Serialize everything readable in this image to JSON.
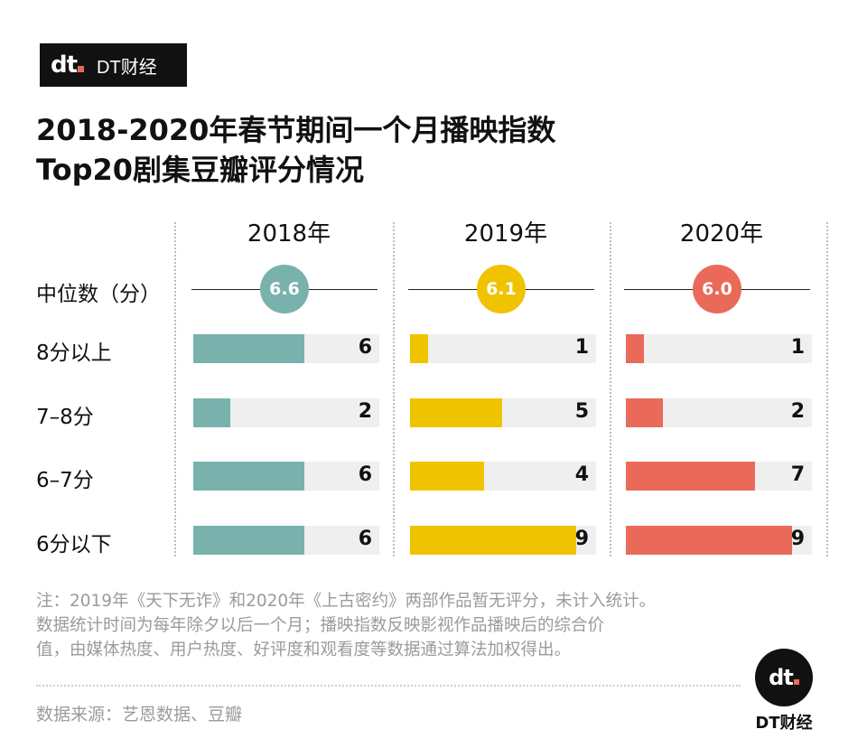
{
  "brand": {
    "mark": "dt",
    "name": "DT财经"
  },
  "title_lines": [
    "2018-2020年春节期间一个月播映指数",
    "Top20剧集豆瓣评分情况"
  ],
  "row_labels": {
    "median": "中位数（分）",
    "r1": "8分以上",
    "r2": "7–8分",
    "r3": "6–7分",
    "r4": "6分以下"
  },
  "note_lines": [
    "注：2019年《天下无诈》和2020年《上古密约》两部作品暂无评分，未计入统计。",
    "数据统计时间为每年除夕以后一个月；播映指数反映影视作品播映后的综合价",
    "值，由媒体热度、用户热度、好评度和观看度等数据通过算法加权得出。"
  ],
  "source": "数据来源：艺恩数据、豆瓣",
  "chart_data": {
    "type": "bar",
    "title": "2018-2020年春节期间一个月播映指数Top20剧集豆瓣评分情况",
    "categories": [
      "8分以上",
      "7–8分",
      "6–7分",
      "6分以下"
    ],
    "max": 9,
    "series": [
      {
        "name": "2018年",
        "median": "6.6",
        "color": "#79b1ad",
        "values": [
          6,
          2,
          6,
          6
        ]
      },
      {
        "name": "2019年",
        "median": "6.1",
        "color": "#f0c300",
        "values": [
          1,
          5,
          4,
          9
        ]
      },
      {
        "name": "2020年",
        "median": "6.0",
        "color": "#ea6a5a",
        "values": [
          1,
          2,
          7,
          9
        ]
      }
    ]
  }
}
